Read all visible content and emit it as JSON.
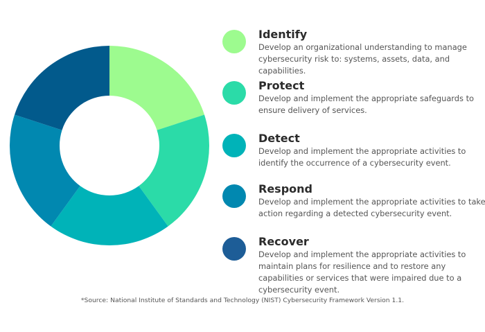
{
  "chart_data": {
    "type": "pie",
    "donut": true,
    "categories": [
      "Identify",
      "Protect",
      "Detect",
      "Respond",
      "Recover"
    ],
    "values": [
      20,
      20,
      20,
      20,
      20
    ],
    "colors": [
      "#9dfb8f",
      "#2bdba8",
      "#00b3b8",
      "#0188b0",
      "#025a8c"
    ],
    "title": "",
    "legend": "right"
  },
  "items": [
    {
      "title": "Identify",
      "desc": "Develop an organizational understanding to manage cybersecurity risk to: systems, assets, data, and capabilities.",
      "color": "#9dfb8f"
    },
    {
      "title": "Protect",
      "desc": "Develop and implement the appropriate safeguards to ensure delivery of services.",
      "color": "#2bdba8"
    },
    {
      "title": "Detect",
      "desc": "Develop and implement the appropriate activities to identify the occurrence of a cybersecurity event.",
      "color": "#00b3b8"
    },
    {
      "title": "Respond",
      "desc": "Develop and implement the appropriate activities to take action regarding a detected cybersecurity event.",
      "color": "#0188b0"
    },
    {
      "title": "Recover",
      "desc": "Develop and implement the appropriate activities to maintain plans for resilience and to restore any capabilities or services that were impaired due to a cybersecurity event.",
      "color": "#1d5d97"
    }
  ],
  "source": "*Source: National Institute of Standards and Technology (NIST) Cybersecurity Framework Version 1.1."
}
